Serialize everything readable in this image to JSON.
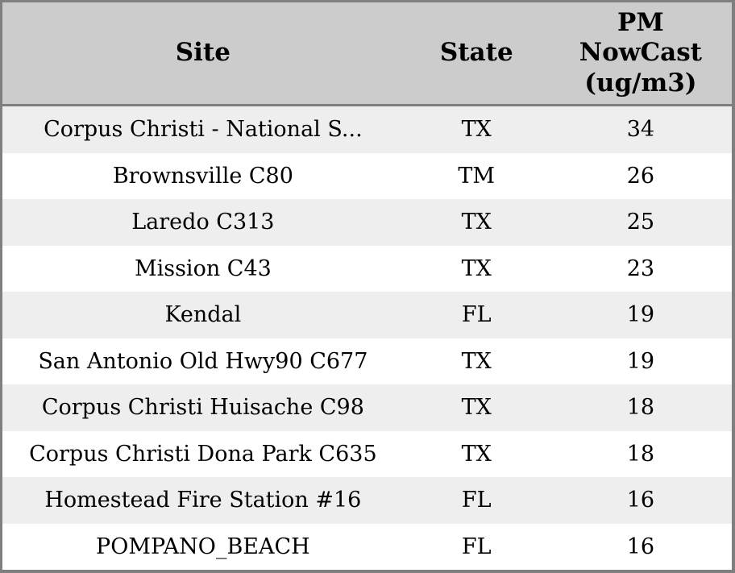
{
  "table": {
    "columns": [
      {
        "key": "site",
        "label": "Site"
      },
      {
        "key": "state",
        "label": "State"
      },
      {
        "key": "value",
        "label": "PM NowCast (ug/m3)"
      }
    ],
    "rows": [
      {
        "site": "Corpus Christi - National S...",
        "state": "TX",
        "value": "34"
      },
      {
        "site": "Brownsville C80",
        "state": "TM",
        "value": "26"
      },
      {
        "site": "Laredo C313",
        "state": "TX",
        "value": "25"
      },
      {
        "site": "Mission C43",
        "state": "TX",
        "value": "23"
      },
      {
        "site": "Kendal",
        "state": "FL",
        "value": "19"
      },
      {
        "site": "San Antonio Old Hwy90 C677",
        "state": "TX",
        "value": "19"
      },
      {
        "site": "Corpus Christi Huisache C98",
        "state": "TX",
        "value": "18"
      },
      {
        "site": "Corpus Christi Dona Park C635",
        "state": "TX",
        "value": "18"
      },
      {
        "site": "Homestead Fire Station #16",
        "state": "FL",
        "value": "16"
      },
      {
        "site": "POMPANO_BEACH",
        "state": "FL",
        "value": "16"
      }
    ]
  },
  "colors": {
    "outer_border": "#7f7f7f",
    "header_bg": "#cccccc",
    "header_separator": "#7f7f7f",
    "row_odd_bg": "#eeeeee",
    "row_even_bg": "#ffffff",
    "text": "#000000"
  },
  "chart_data": {
    "type": "table",
    "title": "",
    "columns": [
      "Site",
      "State",
      "PM NowCast (ug/m3)"
    ],
    "rows": [
      [
        "Corpus Christi - National S...",
        "TX",
        34
      ],
      [
        "Brownsville C80",
        "TM",
        26
      ],
      [
        "Laredo C313",
        "TX",
        25
      ],
      [
        "Mission C43",
        "TX",
        23
      ],
      [
        "Kendal",
        "FL",
        19
      ],
      [
        "San Antonio Old Hwy90 C677",
        "TX",
        19
      ],
      [
        "Corpus Christi Huisache C98",
        "TX",
        18
      ],
      [
        "Corpus Christi Dona Park C635",
        "TX",
        18
      ],
      [
        "Homestead Fire Station #16",
        "FL",
        16
      ],
      [
        "POMPANO_BEACH",
        "FL",
        16
      ]
    ],
    "layout_hints": {
      "header_background": "#cccccc",
      "alternating_row_colors": [
        "#eeeeee",
        "#ffffff"
      ],
      "cell_alignment": "center",
      "sorted_by": "PM NowCast (ug/m3) descending"
    }
  }
}
